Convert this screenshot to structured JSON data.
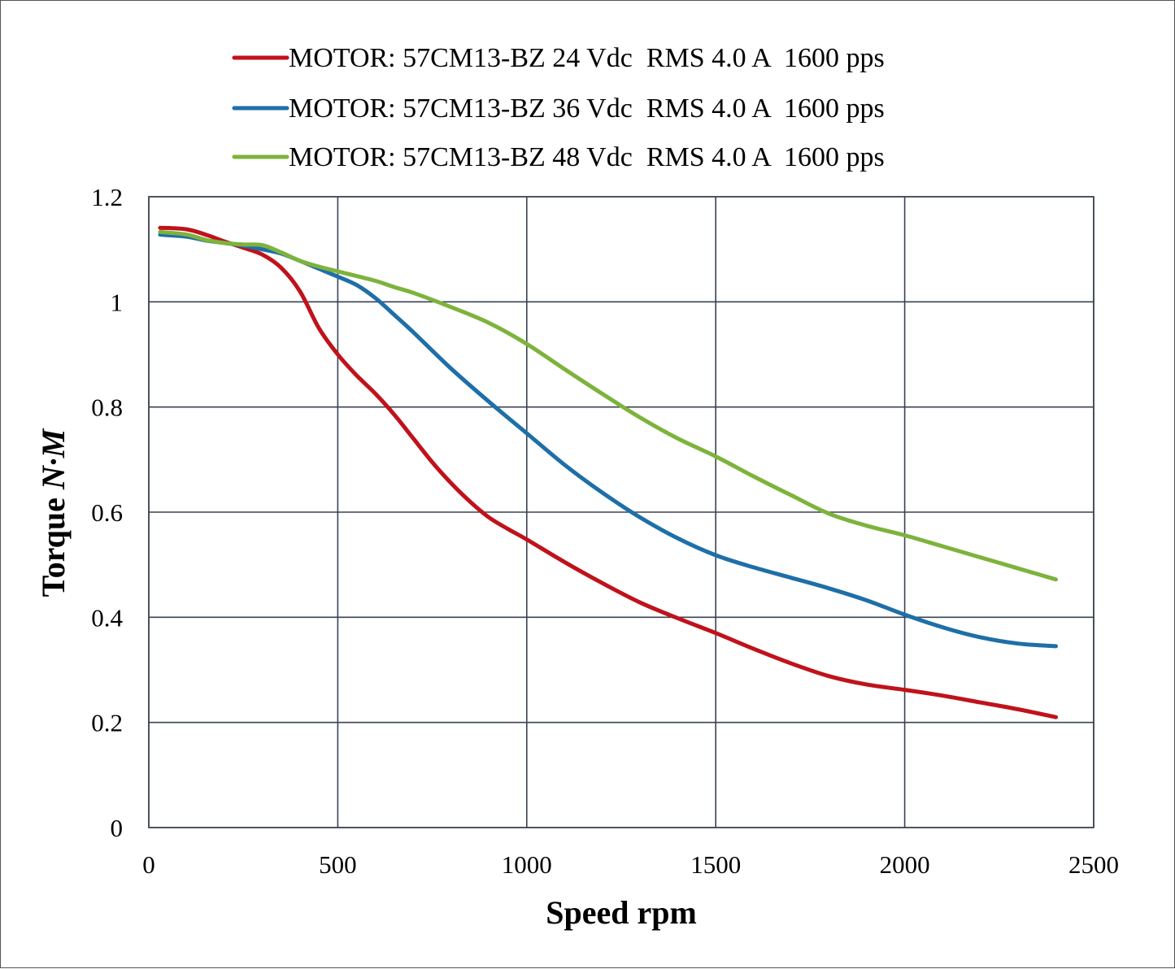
{
  "chart_data": {
    "type": "line",
    "title": "",
    "xlabel": "Speed rpm",
    "ylabel_prefix": "Torque ",
    "ylabel_unit": "N·M",
    "xlim": [
      0,
      2500
    ],
    "ylim": [
      0,
      1.2
    ],
    "x_ticks": [
      "0",
      "500",
      "1000",
      "1500",
      "2000",
      "2500"
    ],
    "y_ticks": [
      "0",
      "0.2",
      "0.4",
      "0.6",
      "0.8",
      "1",
      "1.2"
    ],
    "grid": true,
    "legend_position": "top",
    "series": [
      {
        "name": "MOTOR: 57CM13-BZ 24 Vdc  RMS 4.0 A  1600 pps",
        "color": "#c0121b",
        "points": [
          [
            30,
            1.141
          ],
          [
            100,
            1.138
          ],
          [
            150,
            1.128
          ],
          [
            200,
            1.115
          ],
          [
            250,
            1.103
          ],
          [
            300,
            1.09
          ],
          [
            350,
            1.065
          ],
          [
            400,
            1.02
          ],
          [
            450,
            0.95
          ],
          [
            500,
            0.9
          ],
          [
            550,
            0.86
          ],
          [
            600,
            0.825
          ],
          [
            650,
            0.785
          ],
          [
            700,
            0.74
          ],
          [
            750,
            0.695
          ],
          [
            800,
            0.655
          ],
          [
            850,
            0.62
          ],
          [
            900,
            0.59
          ],
          [
            950,
            0.568
          ],
          [
            1000,
            0.548
          ],
          [
            1100,
            0.505
          ],
          [
            1200,
            0.465
          ],
          [
            1300,
            0.428
          ],
          [
            1400,
            0.398
          ],
          [
            1500,
            0.37
          ],
          [
            1600,
            0.34
          ],
          [
            1700,
            0.312
          ],
          [
            1800,
            0.288
          ],
          [
            1900,
            0.272
          ],
          [
            2000,
            0.262
          ],
          [
            2100,
            0.251
          ],
          [
            2200,
            0.238
          ],
          [
            2300,
            0.225
          ],
          [
            2400,
            0.21
          ]
        ]
      },
      {
        "name": "MOTOR: 57CM13-BZ 36 Vdc  RMS 4.0 A  1600 pps",
        "color": "#1e6fa8",
        "points": [
          [
            30,
            1.128
          ],
          [
            100,
            1.124
          ],
          [
            150,
            1.117
          ],
          [
            200,
            1.112
          ],
          [
            250,
            1.107
          ],
          [
            300,
            1.1
          ],
          [
            350,
            1.092
          ],
          [
            400,
            1.078
          ],
          [
            450,
            1.063
          ],
          [
            500,
            1.048
          ],
          [
            550,
            1.032
          ],
          [
            600,
            1.007
          ],
          [
            650,
            0.975
          ],
          [
            700,
            0.942
          ],
          [
            800,
            0.873
          ],
          [
            900,
            0.81
          ],
          [
            1000,
            0.75
          ],
          [
            1100,
            0.69
          ],
          [
            1200,
            0.637
          ],
          [
            1300,
            0.59
          ],
          [
            1400,
            0.55
          ],
          [
            1500,
            0.518
          ],
          [
            1600,
            0.495
          ],
          [
            1700,
            0.475
          ],
          [
            1800,
            0.455
          ],
          [
            1900,
            0.432
          ],
          [
            2000,
            0.405
          ],
          [
            2100,
            0.381
          ],
          [
            2200,
            0.362
          ],
          [
            2300,
            0.35
          ],
          [
            2400,
            0.345
          ]
        ]
      },
      {
        "name": "MOTOR: 57CM13-BZ 48 Vdc  RMS 4.0 A  1600 pps",
        "color": "#7db33c",
        "points": [
          [
            30,
            1.133
          ],
          [
            100,
            1.128
          ],
          [
            150,
            1.118
          ],
          [
            200,
            1.112
          ],
          [
            250,
            1.109
          ],
          [
            300,
            1.108
          ],
          [
            350,
            1.094
          ],
          [
            400,
            1.078
          ],
          [
            450,
            1.067
          ],
          [
            500,
            1.058
          ],
          [
            550,
            1.049
          ],
          [
            600,
            1.04
          ],
          [
            650,
            1.028
          ],
          [
            700,
            1.017
          ],
          [
            800,
            0.99
          ],
          [
            900,
            0.96
          ],
          [
            1000,
            0.92
          ],
          [
            1100,
            0.872
          ],
          [
            1200,
            0.825
          ],
          [
            1300,
            0.78
          ],
          [
            1400,
            0.74
          ],
          [
            1500,
            0.706
          ],
          [
            1600,
            0.668
          ],
          [
            1700,
            0.632
          ],
          [
            1800,
            0.597
          ],
          [
            1900,
            0.574
          ],
          [
            2000,
            0.556
          ],
          [
            2100,
            0.535
          ],
          [
            2200,
            0.514
          ],
          [
            2300,
            0.493
          ],
          [
            2400,
            0.472
          ]
        ]
      }
    ]
  }
}
